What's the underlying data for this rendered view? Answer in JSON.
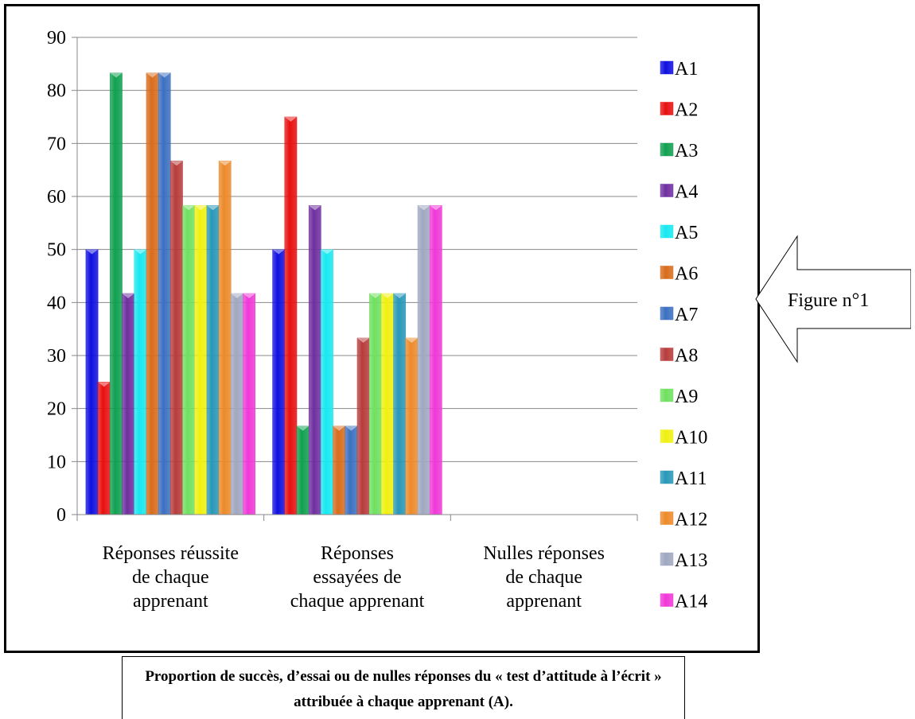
{
  "figure_label": "Figure n°1",
  "caption": "Proportion de succès, d’essai ou de nulles réponses du « test d’attitude à l’écrit » attribuée à chaque apprenant (A).",
  "chart_data": {
    "type": "bar",
    "categories": [
      [
        "Réponses réussite",
        "de chaque",
        "apprenant"
      ],
      [
        "Réponses",
        "essayées de",
        "chaque apprenant"
      ],
      [
        "Nulles réponses",
        "de chaque",
        "apprenant"
      ]
    ],
    "ylim": [
      0,
      90
    ],
    "yticks": [
      0,
      10,
      20,
      30,
      40,
      50,
      60,
      70,
      80,
      90
    ],
    "grid": true,
    "legend_position": "right",
    "series": [
      {
        "name": "A1",
        "color": "#1010e0",
        "values": [
          50,
          50,
          0
        ]
      },
      {
        "name": "A2",
        "color": "#e81010",
        "values": [
          25,
          75,
          0
        ]
      },
      {
        "name": "A3",
        "color": "#10a050",
        "values": [
          83.3,
          16.7,
          0
        ]
      },
      {
        "name": "A4",
        "color": "#7030a0",
        "values": [
          41.7,
          58.3,
          0
        ]
      },
      {
        "name": "A5",
        "color": "#18e8f0",
        "values": [
          50,
          50,
          0
        ]
      },
      {
        "name": "A6",
        "color": "#d86c1c",
        "values": [
          83.3,
          16.7,
          0
        ]
      },
      {
        "name": "A7",
        "color": "#3c70c0",
        "values": [
          83.3,
          16.7,
          0
        ]
      },
      {
        "name": "A8",
        "color": "#b83c3c",
        "values": [
          66.7,
          33.3,
          0
        ]
      },
      {
        "name": "A9",
        "color": "#70e060",
        "values": [
          58.3,
          41.7,
          0
        ]
      },
      {
        "name": "A10",
        "color": "#f0f010",
        "values": [
          58.3,
          41.7,
          0
        ]
      },
      {
        "name": "A11",
        "color": "#2898b8",
        "values": [
          58.3,
          41.7,
          0
        ]
      },
      {
        "name": "A12",
        "color": "#ec8a2a",
        "values": [
          66.7,
          33.3,
          0
        ]
      },
      {
        "name": "A13",
        "color": "#a0a8c0",
        "values": [
          41.7,
          58.3,
          0
        ]
      },
      {
        "name": "A14",
        "color": "#f038d8",
        "values": [
          41.7,
          58.3,
          0
        ]
      }
    ]
  }
}
